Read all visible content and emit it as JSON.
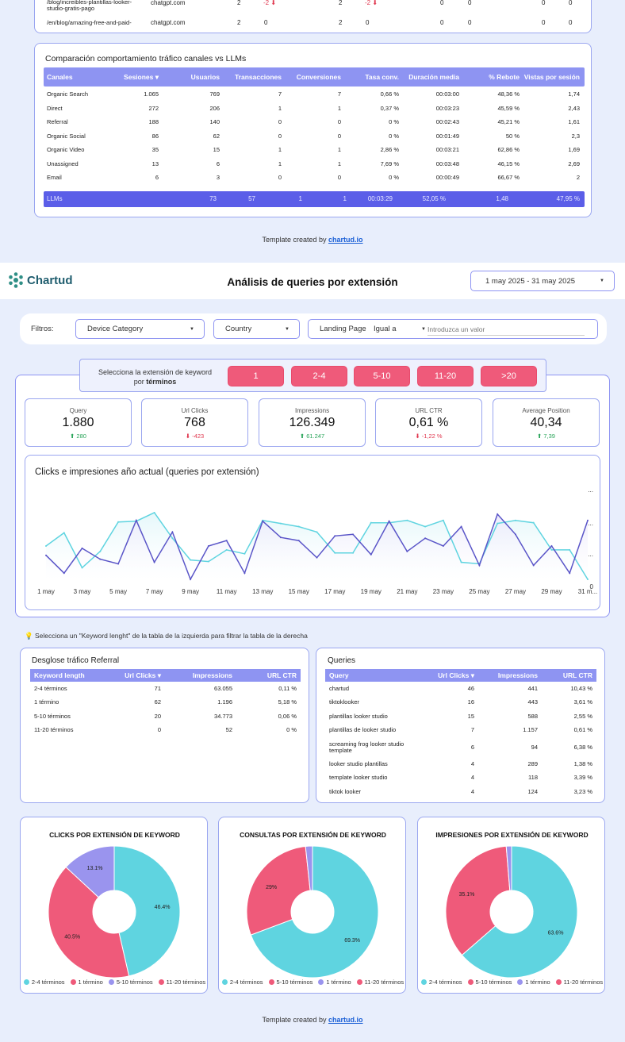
{
  "top_table": {
    "rows": [
      {
        "page": "/blog/increibles-plantillas-looker-studio-gratis-pago",
        "source": "chatgpt.com",
        "a": "2",
        "b": "-2",
        "b_dir": "down",
        "c": "2",
        "d": "-2",
        "d_dir": "down",
        "e": "0",
        "f": "0",
        "g": "0",
        "h": "0"
      },
      {
        "page": "/en/blog/amazing-free-and-paid-",
        "source": "chatgpt.com",
        "a": "2",
        "b": "0",
        "c": "2",
        "d": "0",
        "e": "0",
        "f": "0",
        "g": "0",
        "h": "0"
      }
    ]
  },
  "channels": {
    "title": "Comparación comportamiento tráfico canales vs LLMs",
    "headers": [
      "Canales",
      "Sesiones ▾",
      "Usuarios",
      "Transacciones",
      "Conversiones",
      "Tasa conv.",
      "Duración media",
      "% Rebote",
      "Vistas por sesión"
    ],
    "rows": [
      [
        "Organic Search",
        "1.065",
        "769",
        "7",
        "7",
        "0,66 %",
        "00:03:00",
        "48,36 %",
        "1,74"
      ],
      [
        "Direct",
        "272",
        "206",
        "1",
        "1",
        "0,37 %",
        "00:03:23",
        "45,59 %",
        "2,43"
      ],
      [
        "Referral",
        "188",
        "140",
        "0",
        "0",
        "0 %",
        "00:02:43",
        "45,21 %",
        "1,61"
      ],
      [
        "Organic Social",
        "86",
        "62",
        "0",
        "0",
        "0 %",
        "00:01:49",
        "50 %",
        "2,3"
      ],
      [
        "Organic Video",
        "35",
        "15",
        "1",
        "1",
        "2,86 %",
        "00:03:21",
        "62,86 %",
        "1,69"
      ],
      [
        "Unassigned",
        "13",
        "6",
        "1",
        "1",
        "7,69 %",
        "00:03:48",
        "46,15 %",
        "2,69"
      ],
      [
        "Email",
        "6",
        "3",
        "0",
        "0",
        "0 %",
        "00:00:49",
        "66,67 %",
        "2"
      ]
    ],
    "llm_row": [
      "LLMs",
      "73",
      "57",
      "1",
      "1",
      "00:03:29",
      "52,05 %",
      "1,48",
      "47,95 %"
    ]
  },
  "footer": {
    "prefix": "Template created by ",
    "link": "chartud.io"
  },
  "header": {
    "logo": "Chartud",
    "title": "Análisis de queries por extensión",
    "date_range": "1 may 2025 - 31 may 2025"
  },
  "filters": {
    "label": "Filtros:",
    "device": "Device Category",
    "country": "Country",
    "landing_label": "Landing Page",
    "operator": "Igual a",
    "placeholder": "Introduzca un valor"
  },
  "extension_selector": {
    "label_1": "Selecciona la extensión de keyword",
    "label_2": "por",
    "label_bold": "términos",
    "buttons": [
      "1",
      "2-4",
      "5-10",
      "11-20",
      ">20"
    ]
  },
  "kpis": [
    {
      "label": "Query",
      "value": "1.880",
      "delta": "280",
      "dir": "up"
    },
    {
      "label": "Url Clicks",
      "value": "768",
      "delta": "-423",
      "dir": "down"
    },
    {
      "label": "Impressions",
      "value": "126.349",
      "delta": "61.247",
      "dir": "up"
    },
    {
      "label": "URL CTR",
      "value": "0,61 %",
      "delta": "-1,22 %",
      "dir": "down"
    },
    {
      "label": "Average Position",
      "value": "40,34",
      "delta": "7,39",
      "dir": "up"
    }
  ],
  "chart_data": {
    "type": "line",
    "title": "Clicks e impresiones año actual (queries por extensión)",
    "x": [
      "1 may",
      "2 may",
      "3 may",
      "4 may",
      "5 may",
      "6 may",
      "7 may",
      "8 may",
      "9 may",
      "10 may",
      "11 may",
      "12 may",
      "13 may",
      "14 may",
      "15 may",
      "16 may",
      "17 may",
      "18 may",
      "19 may",
      "20 may",
      "21 may",
      "22 may",
      "23 may",
      "24 may",
      "25 may",
      "26 may",
      "27 may",
      "28 may",
      "29 may",
      "30 may",
      "31 may"
    ],
    "x_tick_labels": [
      "1 may",
      "3 may",
      "5 may",
      "7 may",
      "9 may",
      "11 may",
      "13 may",
      "15 may",
      "17 may",
      "19 may",
      "21 may",
      "23 may",
      "25 may",
      "27 may",
      "29 may",
      "31 m..."
    ],
    "y_right_labels": [
      "...",
      "...",
      "...",
      "0"
    ],
    "series": [
      {
        "color": "#5fd4e0",
        "fill": "#e3f7fa",
        "values": [
          0.45,
          0.62,
          0.17,
          0.38,
          0.76,
          0.77,
          0.88,
          0.55,
          0.27,
          0.25,
          0.4,
          0.35,
          0.78,
          0.74,
          0.7,
          0.63,
          0.36,
          0.36,
          0.75,
          0.75,
          0.78,
          0.7,
          0.78,
          0.24,
          0.22,
          0.74,
          0.78,
          0.75,
          0.4,
          0.4,
          0.02
        ]
      },
      {
        "color": "#5a55c8",
        "fill": "#ebe9fb",
        "values": [
          0.33,
          0.1,
          0.42,
          0.28,
          0.22,
          0.78,
          0.24,
          0.63,
          0.02,
          0.45,
          0.52,
          0.1,
          0.77,
          0.56,
          0.52,
          0.3,
          0.58,
          0.6,
          0.34,
          0.77,
          0.38,
          0.55,
          0.45,
          0.7,
          0.2,
          0.86,
          0.6,
          0.2,
          0.45,
          0.1,
          0.78
        ]
      }
    ]
  },
  "hint": {
    "icon": "lightbulb-icon",
    "text": "Selecciona un \"Keyword lenght\" de la tabla de la izquierda para filtrar la tabla de la derecha"
  },
  "referral_table": {
    "title": "Desglose tráfico Referral",
    "headers": [
      "Keyword length",
      "Url Clicks ▾",
      "Impressions",
      "URL CTR"
    ],
    "rows": [
      [
        "2-4 términos",
        "71",
        "63.055",
        "0,11 %"
      ],
      [
        "1 término",
        "62",
        "1.196",
        "5,18 %"
      ],
      [
        "5-10 términos",
        "20",
        "34.773",
        "0,06 %"
      ],
      [
        "11-20 términos",
        "0",
        "52",
        "0 %"
      ]
    ]
  },
  "queries_table": {
    "title": "Queries",
    "headers": [
      "Query",
      "Url Clicks ▾",
      "Impressions",
      "URL CTR"
    ],
    "rows": [
      [
        "chartud",
        "46",
        "441",
        "10,43 %"
      ],
      [
        "tiktoklooker",
        "16",
        "443",
        "3,61 %"
      ],
      [
        "plantillas looker studio",
        "15",
        "588",
        "2,55 %"
      ],
      [
        "plantillas de looker studio",
        "7",
        "1.157",
        "0,61 %"
      ],
      [
        "screaming frog looker studio template",
        "6",
        "94",
        "6,38 %"
      ],
      [
        "looker studio plantillas",
        "4",
        "289",
        "1,38 %"
      ],
      [
        "template looker studio",
        "4",
        "118",
        "3,39 %"
      ],
      [
        "tiktok looker",
        "4",
        "124",
        "3,23 %"
      ]
    ]
  },
  "pies": [
    {
      "title": "CLICKS POR EXTENSIÓN DE KEYWORD",
      "slices": [
        {
          "label": "2-4 términos",
          "value": 46.4,
          "color": "#5fd4e0"
        },
        {
          "label": "1 término",
          "value": 40.5,
          "color": "#ef5a7a"
        },
        {
          "label": "5-10 términos",
          "value": 13.1,
          "color": "#9a94ee"
        },
        {
          "label": "11-20 términos",
          "value": 0,
          "color": "#ef5a7a"
        }
      ],
      "shown": [
        "46.4%",
        "40.5%",
        "13.1%"
      ],
      "legend": [
        "2-4 términos",
        "1 término",
        "5-10 términos",
        "11-20 términos"
      ]
    },
    {
      "title": "CONSULTAS POR EXTENSIÓN DE KEYWORD",
      "slices": [
        {
          "label": "2-4 términos",
          "value": 69.3,
          "color": "#5fd4e0"
        },
        {
          "label": "5-10 términos",
          "value": 29,
          "color": "#ef5a7a"
        },
        {
          "label": "1 término",
          "value": 1.7,
          "color": "#9a94ee"
        }
      ],
      "shown": [
        "69.3%",
        "29%"
      ],
      "legend": [
        "2-4 términos",
        "5-10 términos",
        "1 término",
        "11-20 términos"
      ]
    },
    {
      "title": "IMPRESIONES POR EXTENSIÓN DE KEYWORD",
      "slices": [
        {
          "label": "2-4 términos",
          "value": 63.6,
          "color": "#5fd4e0"
        },
        {
          "label": "5-10 términos",
          "value": 35.1,
          "color": "#ef5a7a"
        },
        {
          "label": "1 término",
          "value": 1.3,
          "color": "#9a94ee"
        }
      ],
      "shown": [
        "63.6%",
        "35.1%"
      ],
      "legend": [
        "2-4 términos",
        "5-10 términos",
        "1 término",
        "11-20 términos"
      ]
    }
  ],
  "colors": {
    "accent": "#8e94f2",
    "llm": "#5b5ee8",
    "pink": "#ef5a7a",
    "cyan": "#5fd4e0",
    "violet": "#9a94ee",
    "up": "#2aa55a",
    "down": "#e0384f"
  }
}
